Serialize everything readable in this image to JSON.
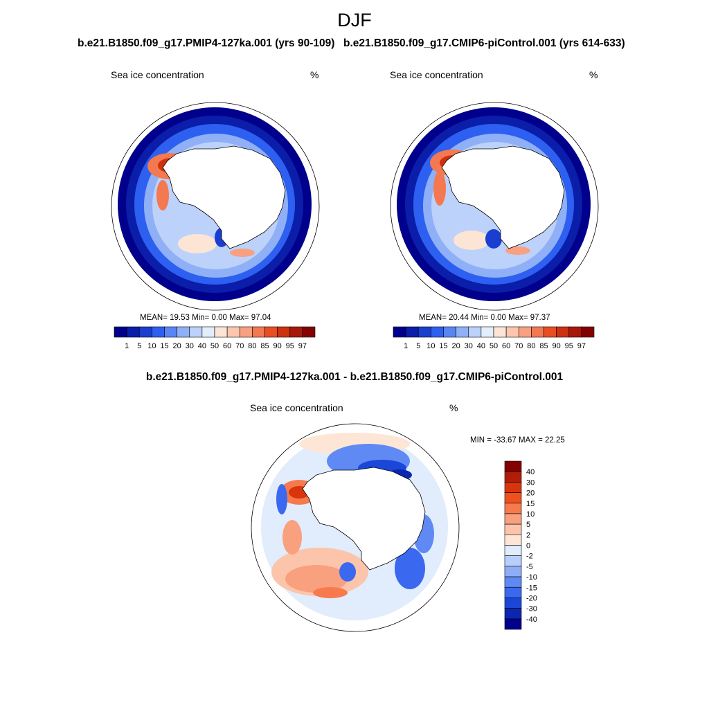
{
  "figure": {
    "season": "DJF",
    "panel1": {
      "title": "b.e21.B1850.f09_g17.PMIP4-127ka.001 (yrs 90-109)",
      "variable": "Sea ice concentration",
      "units": "%",
      "stats": "MEAN=  19.53  Min=   0.00  Max=  97.04"
    },
    "panel2": {
      "title": "b.e21.B1850.f09_g17.CMIP6-piControl.001 (yrs 614-633)",
      "variable": "Sea ice concentration",
      "units": "%",
      "stats": "MEAN=  20.44  Min=   0.00  Max=  97.37"
    },
    "panel3": {
      "title": "b.e21.B1850.f09_g17.PMIP4-127ka.001 - b.e21.B1850.f09_g17.CMIP6-piControl.001",
      "variable": "Sea ice concentration",
      "units": "%",
      "minmax": "MIN = -33.67 MAX =  22.25"
    }
  },
  "colorbars": {
    "absolute": {
      "labels": [
        "1",
        "5",
        "10",
        "15",
        "20",
        "30",
        "40",
        "50",
        "60",
        "70",
        "80",
        "85",
        "90",
        "95",
        "97"
      ],
      "colors": [
        "#00008c",
        "#0a1eaa",
        "#1a3ed0",
        "#2d5ff0",
        "#5a86f5",
        "#8fb0f7",
        "#bcd2fa",
        "#e3eefc",
        "#fde5d6",
        "#fcc7ae",
        "#f9a080",
        "#f47850",
        "#e94e22",
        "#cf300e",
        "#a8180a",
        "#850000"
      ]
    },
    "difference": {
      "labels": [
        "40",
        "30",
        "20",
        "15",
        "10",
        "5",
        "2",
        "0",
        "-2",
        "-5",
        "-10",
        "-15",
        "-20",
        "-30",
        "-40"
      ],
      "colors": [
        "#850000",
        "#b01e08",
        "#d8350d",
        "#f0501c",
        "#f77a4d",
        "#f9a07f",
        "#fcc5ab",
        "#fde6d5",
        "#e1ecfc",
        "#b7cffa",
        "#8dadf6",
        "#5f8af4",
        "#3a69f0",
        "#1a47d8",
        "#0b26b0",
        "#00008c"
      ]
    }
  }
}
